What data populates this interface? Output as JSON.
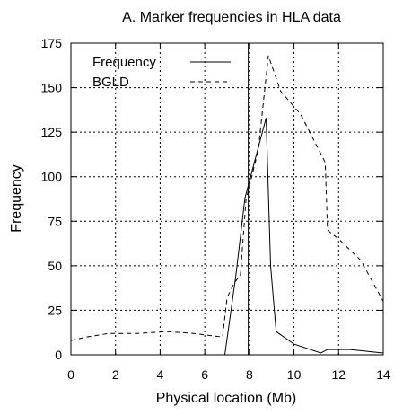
{
  "chart_data": {
    "type": "line",
    "title": "A. Marker frequencies in HLA data",
    "xlabel": "Physical location (Mb)",
    "ylabel": "Frequency",
    "xlim": [
      0,
      14
    ],
    "ylim": [
      0,
      175
    ],
    "x_ticks": [
      0,
      2,
      4,
      6,
      8,
      10,
      12,
      14
    ],
    "y_ticks": [
      0,
      25,
      50,
      75,
      100,
      125,
      150,
      175
    ],
    "grid": true,
    "legend_position": "top-left",
    "reference_line_x": 7.95,
    "series": [
      {
        "name": "Frequency",
        "line_style": "solid",
        "color": "#000000",
        "points": [
          [
            6.9,
            0
          ],
          [
            7.4,
            45
          ],
          [
            7.8,
            88
          ],
          [
            8.75,
            133
          ],
          [
            8.95,
            50
          ],
          [
            9.2,
            13
          ],
          [
            10.0,
            6
          ],
          [
            11.2,
            1
          ],
          [
            11.5,
            3
          ],
          [
            12.5,
            3
          ],
          [
            14.0,
            1
          ]
        ]
      },
      {
        "name": "BGLD",
        "line_style": "dashed",
        "color": "#000000",
        "points": [
          [
            0,
            8
          ],
          [
            0.7,
            10
          ],
          [
            1.7,
            12
          ],
          [
            3.0,
            12
          ],
          [
            4.3,
            13
          ],
          [
            5.5,
            12
          ],
          [
            6.8,
            10
          ],
          [
            7.0,
            32
          ],
          [
            7.3,
            40
          ],
          [
            7.6,
            45
          ],
          [
            7.85,
            87
          ],
          [
            8.4,
            115
          ],
          [
            8.85,
            168
          ],
          [
            9.4,
            148
          ],
          [
            10.3,
            135
          ],
          [
            11.4,
            108
          ],
          [
            11.5,
            70
          ],
          [
            12.0,
            65
          ],
          [
            13.0,
            53
          ],
          [
            14.0,
            30
          ]
        ]
      }
    ]
  }
}
